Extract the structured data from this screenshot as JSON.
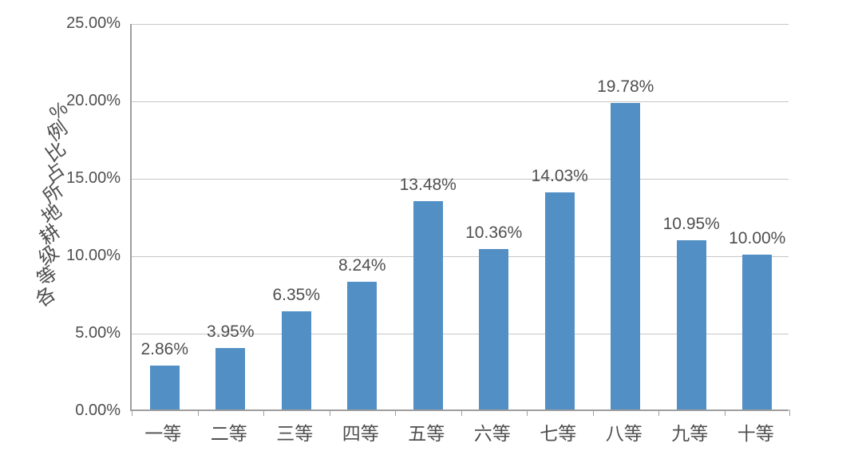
{
  "chart_data": {
    "type": "bar",
    "title": "",
    "xlabel": "",
    "ylabel": "各等级耕地所占比例%",
    "categories": [
      "一等",
      "二等",
      "三等",
      "四等",
      "五等",
      "六等",
      "七等",
      "八等",
      "九等",
      "十等"
    ],
    "values": [
      2.86,
      3.95,
      6.35,
      8.24,
      13.48,
      10.36,
      14.03,
      19.78,
      10.95,
      10.0
    ],
    "data_labels": [
      "2.86%",
      "3.95%",
      "6.35%",
      "8.24%",
      "13.48%",
      "10.36%",
      "14.03%",
      "19.78%",
      "10.95%",
      "10.00%"
    ],
    "yticks": [
      "0.00%",
      "5.00%",
      "10.00%",
      "15.00%",
      "20.00%",
      "25.00%"
    ],
    "ytick_step": 5,
    "ylim": [
      0,
      25
    ],
    "grid": true,
    "legend": false,
    "bar_color": "#528fc4",
    "grid_color": "#c7c7c7",
    "axis_color": "#9e9e9e",
    "text_color": "#4f4f4f"
  }
}
